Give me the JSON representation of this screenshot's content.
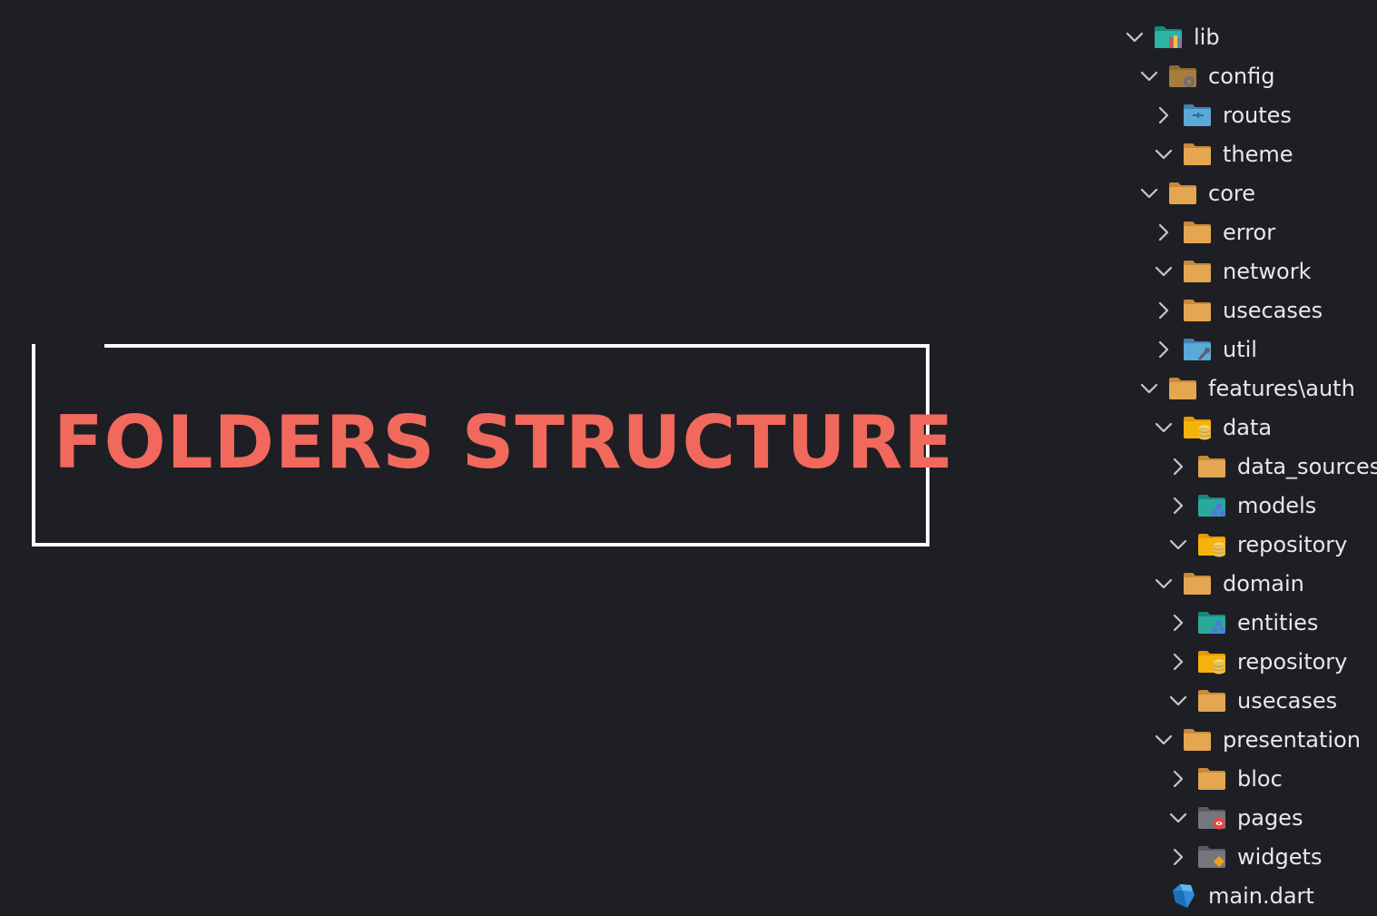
{
  "title": {
    "text": "FOLDERS STRUCTURE",
    "color": "#f0695c"
  },
  "colors": {
    "background": "#1e1f24",
    "tree_text": "#e8e8ea",
    "chevron": "#c8c8cc",
    "box_border": "#ffffff"
  },
  "tree": [
    {
      "label": "lib",
      "depth": 0,
      "expanded": true,
      "icon": "lib-folder-icon"
    },
    {
      "label": "config",
      "depth": 1,
      "expanded": true,
      "icon": "config-folder-icon"
    },
    {
      "label": "routes",
      "depth": 2,
      "expanded": false,
      "icon": "routes-folder-icon"
    },
    {
      "label": "theme",
      "depth": 2,
      "expanded": true,
      "icon": "folder-icon"
    },
    {
      "label": "core",
      "depth": 1,
      "expanded": true,
      "icon": "folder-icon"
    },
    {
      "label": "error",
      "depth": 2,
      "expanded": false,
      "icon": "folder-icon"
    },
    {
      "label": "network",
      "depth": 2,
      "expanded": true,
      "icon": "folder-icon"
    },
    {
      "label": "usecases",
      "depth": 2,
      "expanded": false,
      "icon": "folder-icon"
    },
    {
      "label": "util",
      "depth": 2,
      "expanded": false,
      "icon": "util-folder-icon"
    },
    {
      "label": "features\\auth",
      "depth": 1,
      "expanded": true,
      "icon": "folder-icon"
    },
    {
      "label": "data",
      "depth": 2,
      "expanded": true,
      "icon": "database-folder-icon"
    },
    {
      "label": "data_sources",
      "depth": 3,
      "expanded": false,
      "icon": "folder-icon"
    },
    {
      "label": "models",
      "depth": 3,
      "expanded": false,
      "icon": "models-folder-icon"
    },
    {
      "label": "repository",
      "depth": 3,
      "expanded": true,
      "icon": "database-folder-icon"
    },
    {
      "label": "domain",
      "depth": 2,
      "expanded": true,
      "icon": "folder-icon"
    },
    {
      "label": "entities",
      "depth": 3,
      "expanded": false,
      "icon": "models-folder-icon"
    },
    {
      "label": "repository",
      "depth": 3,
      "expanded": false,
      "icon": "database-folder-icon"
    },
    {
      "label": "usecases",
      "depth": 3,
      "expanded": true,
      "icon": "folder-icon"
    },
    {
      "label": "presentation",
      "depth": 2,
      "expanded": true,
      "icon": "folder-icon"
    },
    {
      "label": "bloc",
      "depth": 3,
      "expanded": false,
      "icon": "folder-icon"
    },
    {
      "label": "pages",
      "depth": 3,
      "expanded": true,
      "icon": "pages-folder-icon"
    },
    {
      "label": "widgets",
      "depth": 3,
      "expanded": false,
      "icon": "widgets-folder-icon"
    },
    {
      "label": "main.dart",
      "depth": 1,
      "expanded": null,
      "icon": "dart-file-icon"
    }
  ]
}
